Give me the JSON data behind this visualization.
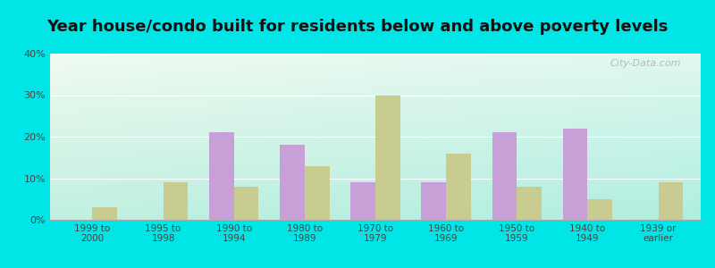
{
  "title": "Year house/condo built for residents below and above poverty levels",
  "categories": [
    "1999 to\n2000",
    "1995 to\n1998",
    "1990 to\n1994",
    "1980 to\n1989",
    "1970 to\n1979",
    "1960 to\n1969",
    "1950 to\n1959",
    "1940 to\n1949",
    "1939 or\nearlier"
  ],
  "below_poverty": [
    0,
    0,
    21,
    18,
    9,
    9,
    21,
    22,
    0
  ],
  "above_poverty": [
    3,
    9,
    8,
    13,
    30,
    16,
    8,
    5,
    9
  ],
  "below_color": "#c8a0d8",
  "above_color": "#c8cc90",
  "ylim": [
    0,
    40
  ],
  "yticks": [
    0,
    10,
    20,
    30,
    40
  ],
  "bg_top_left": "#f0faf0",
  "bg_bottom_right": "#b0eee0",
  "outer_bg": "#00e5e5",
  "bar_width": 0.35,
  "title_fontsize": 13,
  "watermark": "City-Data.com"
}
